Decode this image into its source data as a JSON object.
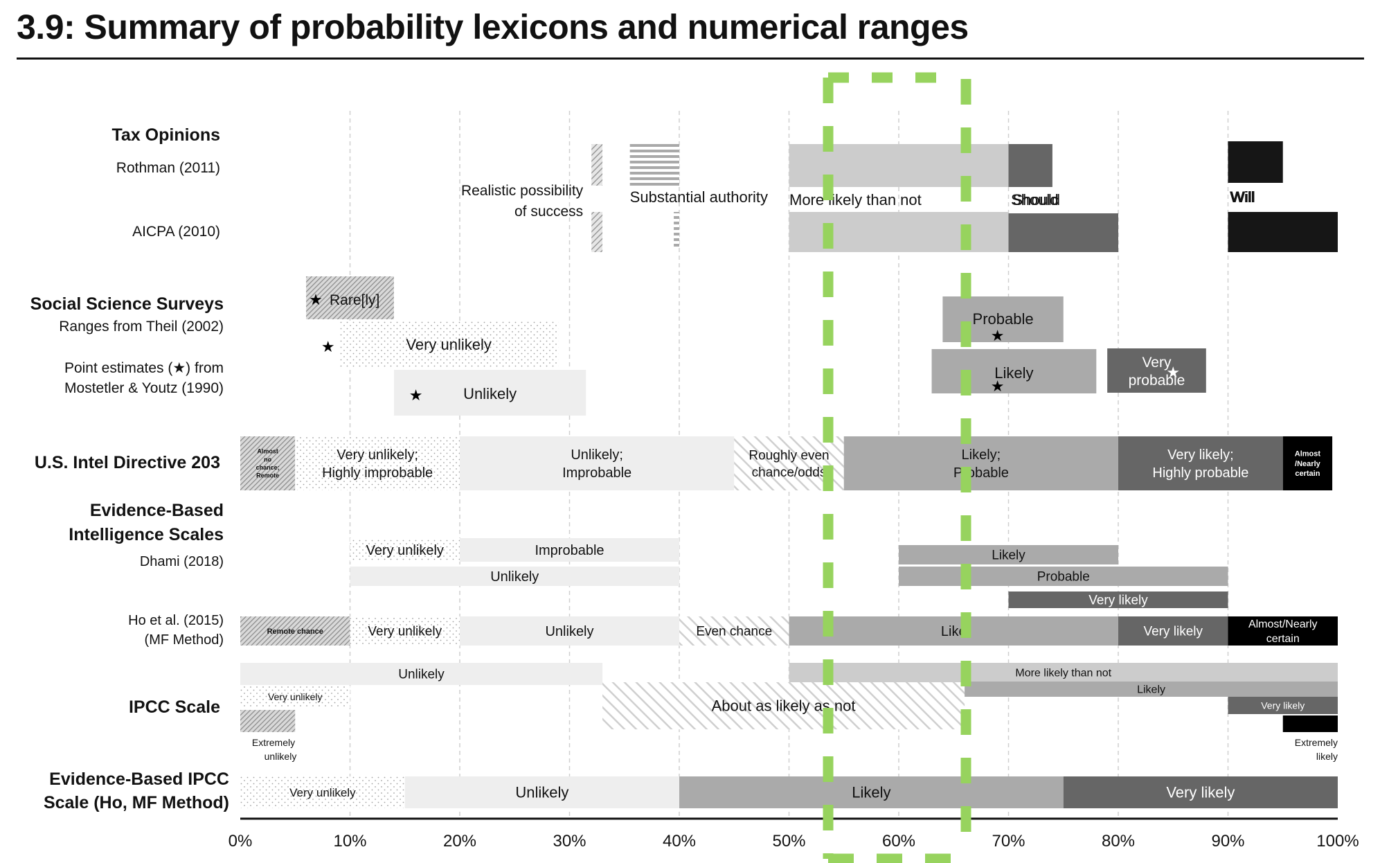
{
  "title": "3.9: Summary of probability lexicons and numerical ranges",
  "highlight_color": "#97d35e",
  "chart_data": {
    "type": "range-bar",
    "title": "3.9: Summary of probability lexicons and numerical ranges",
    "xlabel": "",
    "ylabel": "",
    "xlim": [
      0,
      100
    ],
    "x_ticks": [
      "0%",
      "10%",
      "20%",
      "30%",
      "40%",
      "50%",
      "60%",
      "70%",
      "80%",
      "90%",
      "100%"
    ],
    "grid": "vertical dashed every 10%",
    "highlight_box": {
      "x_range": [
        53.5,
        66
      ],
      "style": "green dashed rectangle",
      "color": "#97d35e"
    },
    "groups": [
      {
        "name": "Tax Opinions",
        "bold": true,
        "row_labels": [
          {
            "text": "Rothman (2011)",
            "row": "rothman"
          },
          {
            "text": "AICPA (2010)",
            "row": "aicpa"
          }
        ]
      },
      {
        "name": "Social Science Surveys",
        "bold": true,
        "row_labels": [
          {
            "text": "Ranges from Theil (2002)",
            "row": "theil"
          },
          {
            "text": "Point estimates (★) from",
            "row": "mostetler1"
          },
          {
            "text": "Mostetler & Youtz (1990)",
            "row": "mostetler2"
          }
        ]
      },
      {
        "name": "U.S. Intel Directive 203",
        "bold": true,
        "row_labels": []
      },
      {
        "name": "Evidence-Based Intelligence Scales",
        "bold": true,
        "row_labels": [
          {
            "text": "Dhami (2018)",
            "row": "dhami"
          },
          {
            "text": "Ho et al. (2015)",
            "row": "ho1"
          },
          {
            "text": "(MF Method)",
            "row": "ho2"
          }
        ]
      },
      {
        "name": "IPCC Scale",
        "bold": true,
        "row_labels": []
      },
      {
        "name": "Evidence-Based IPCC Scale (Ho, MF Method)",
        "bold": true,
        "row_labels": []
      }
    ],
    "bars": [
      {
        "group": "Tax Opinions",
        "row": "Rothman (2011)",
        "label": "Realistic possibility of success",
        "start": 32,
        "end": 33,
        "fill": "hatch-diag"
      },
      {
        "group": "Tax Opinions",
        "row": "Rothman (2011)",
        "label": "Substantial authority",
        "start": 35.5,
        "end": 40,
        "fill": "hatch-horiz"
      },
      {
        "group": "Tax Opinions",
        "row": "Rothman (2011)",
        "label": "More likely than not",
        "start": 50,
        "end": 70,
        "fill": "#cccccc"
      },
      {
        "group": "Tax Opinions",
        "row": "Rothman (2011)",
        "label": "Should",
        "start": 70,
        "end": 74,
        "fill": "#666666"
      },
      {
        "group": "Tax Opinions",
        "row": "Rothman (2011)",
        "label": "Will",
        "start": 90,
        "end": 95,
        "fill": "#161616"
      },
      {
        "group": "Tax Opinions",
        "row": "AICPA (2010)",
        "label": "Realistic possibility of success",
        "start": 32,
        "end": 33,
        "fill": "hatch-diag"
      },
      {
        "group": "Tax Opinions",
        "row": "AICPA (2010)",
        "label": "Substantial authority",
        "start": 39.5,
        "end": 40,
        "fill": "hatch-horiz"
      },
      {
        "group": "Tax Opinions",
        "row": "AICPA (2010)",
        "label": "More likely than not",
        "start": 50,
        "end": 70,
        "fill": "#cccccc"
      },
      {
        "group": "Tax Opinions",
        "row": "AICPA (2010)",
        "label": "Should",
        "start": 70,
        "end": 80,
        "fill": "#666666"
      },
      {
        "group": "Tax Opinions",
        "row": "AICPA (2010)",
        "label": "Will",
        "start": 90,
        "end": 100,
        "fill": "#161616"
      },
      {
        "group": "Social Science Surveys",
        "row": "Theil",
        "label": "Rare[ly]",
        "start": 6,
        "end": 14,
        "fill": "hatch-diag-dark",
        "star": 7
      },
      {
        "group": "Social Science Surveys",
        "row": "Theil",
        "label": "Very unlikely",
        "start": 9,
        "end": 29,
        "fill": "dots",
        "star": 8
      },
      {
        "group": "Social Science Surveys",
        "row": "Theil",
        "label": "Unlikely",
        "start": 14,
        "end": 31.5,
        "fill": "#eeeeee",
        "star": 16
      },
      {
        "group": "Social Science Surveys",
        "row": "Theil",
        "label": "Probable",
        "start": 64,
        "end": 75,
        "fill": "#aaaaaa",
        "star": 69
      },
      {
        "group": "Social Science Surveys",
        "row": "Theil",
        "label": "Likely",
        "start": 63,
        "end": 78,
        "fill": "#aaaaaa",
        "star": 69
      },
      {
        "group": "Social Science Surveys",
        "row": "Theil",
        "label": "Very probable",
        "start": 79,
        "end": 88,
        "fill": "#666666",
        "star": 85
      },
      {
        "group": "U.S. Intel Directive 203",
        "label": "Almost no chance; Remote",
        "start": 0,
        "end": 5,
        "fill": "hatch-diag-dark"
      },
      {
        "group": "U.S. Intel Directive 203",
        "label": "Very unlikely; Highly improbable",
        "start": 5,
        "end": 20,
        "fill": "dots"
      },
      {
        "group": "U.S. Intel Directive 203",
        "label": "Unlikely; Improbable",
        "start": 20,
        "end": 45,
        "fill": "#eeeeee"
      },
      {
        "group": "U.S. Intel Directive 203",
        "label": "Roughly even chance/odds",
        "start": 45,
        "end": 55,
        "fill": "hatch-diag-light"
      },
      {
        "group": "U.S. Intel Directive 203",
        "label": "Likely; Probable",
        "start": 55,
        "end": 80,
        "fill": "#aaaaaa"
      },
      {
        "group": "U.S. Intel Directive 203",
        "label": "Very likely; Highly probable",
        "start": 80,
        "end": 95,
        "fill": "#666666"
      },
      {
        "group": "U.S. Intel Directive 203",
        "label": "Almost /Nearly certain",
        "start": 95,
        "end": 99.5,
        "fill": "#000000"
      },
      {
        "group": "Dhami (2018)",
        "label": "Very unlikely",
        "start": 10,
        "end": 20,
        "fill": "dots",
        "lane": 0
      },
      {
        "group": "Dhami (2018)",
        "label": "Improbable",
        "start": 20,
        "end": 40,
        "fill": "#eeeeee",
        "lane": 0
      },
      {
        "group": "Dhami (2018)",
        "label": "Unlikely",
        "start": 10,
        "end": 40,
        "fill": "#eeeeee",
        "lane": 1
      },
      {
        "group": "Dhami (2018)",
        "label": "Likely",
        "start": 60,
        "end": 80,
        "fill": "#aaaaaa",
        "lane": 0
      },
      {
        "group": "Dhami (2018)",
        "label": "Probable",
        "start": 60,
        "end": 90,
        "fill": "#aaaaaa",
        "lane": 1
      },
      {
        "group": "Dhami (2018)",
        "label": "Very likely",
        "start": 70,
        "end": 90,
        "fill": "#666666",
        "lane": 2
      },
      {
        "group": "Ho et al. (2015) (MF Method)",
        "label": "Remote chance",
        "start": 0,
        "end": 10,
        "fill": "hatch-diag-dark"
      },
      {
        "group": "Ho et al. (2015) (MF Method)",
        "label": "Very unlikely",
        "start": 10,
        "end": 20,
        "fill": "dots"
      },
      {
        "group": "Ho et al. (2015) (MF Method)",
        "label": "Unlikely",
        "start": 20,
        "end": 40,
        "fill": "#eeeeee"
      },
      {
        "group": "Ho et al. (2015) (MF Method)",
        "label": "Even chance",
        "start": 40,
        "end": 50,
        "fill": "hatch-diag-light"
      },
      {
        "group": "Ho et al. (2015) (MF Method)",
        "label": "Likely",
        "start": 50,
        "end": 80,
        "fill": "#aaaaaa"
      },
      {
        "group": "Ho et al. (2015) (MF Method)",
        "label": "Very likely",
        "start": 80,
        "end": 90,
        "fill": "#666666"
      },
      {
        "group": "Ho et al. (2015) (MF Method)",
        "label": "Almost/Nearly certain",
        "start": 90,
        "end": 100,
        "fill": "#000000"
      },
      {
        "group": "IPCC Scale",
        "label": "Unlikely",
        "start": 0,
        "end": 33,
        "fill": "#eeeeee"
      },
      {
        "group": "IPCC Scale",
        "label": "Very unlikely",
        "start": 0,
        "end": 10,
        "fill": "dots"
      },
      {
        "group": "IPCC Scale",
        "label": "Extremely unlikely",
        "start": 0,
        "end": 5,
        "fill": "hatch-diag-dark"
      },
      {
        "group": "IPCC Scale",
        "label": "About as likely as not",
        "start": 33,
        "end": 66,
        "fill": "hatch-diag-light"
      },
      {
        "group": "IPCC Scale",
        "label": "More likely than not",
        "start": 50,
        "end": 100,
        "fill": "#cccccc"
      },
      {
        "group": "IPCC Scale",
        "label": "Likely",
        "start": 66,
        "end": 100,
        "fill": "#aaaaaa"
      },
      {
        "group": "IPCC Scale",
        "label": "Very likely",
        "start": 90,
        "end": 100,
        "fill": "#666666"
      },
      {
        "group": "IPCC Scale",
        "label": "Extremely likely",
        "start": 95,
        "end": 100,
        "fill": "#000000"
      },
      {
        "group": "Evidence-Based IPCC Scale (Ho, MF Method)",
        "label": "Very unlikely",
        "start": 0,
        "end": 15,
        "fill": "dots"
      },
      {
        "group": "Evidence-Based IPCC Scale (Ho, MF Method)",
        "label": "Unlikely",
        "start": 15,
        "end": 40,
        "fill": "#eeeeee"
      },
      {
        "group": "Evidence-Based IPCC Scale (Ho, MF Method)",
        "label": "Likely",
        "start": 40,
        "end": 75,
        "fill": "#aaaaaa"
      },
      {
        "group": "Evidence-Based IPCC Scale (Ho, MF Method)",
        "label": "Very likely",
        "start": 75,
        "end": 100,
        "fill": "#666666"
      }
    ]
  }
}
